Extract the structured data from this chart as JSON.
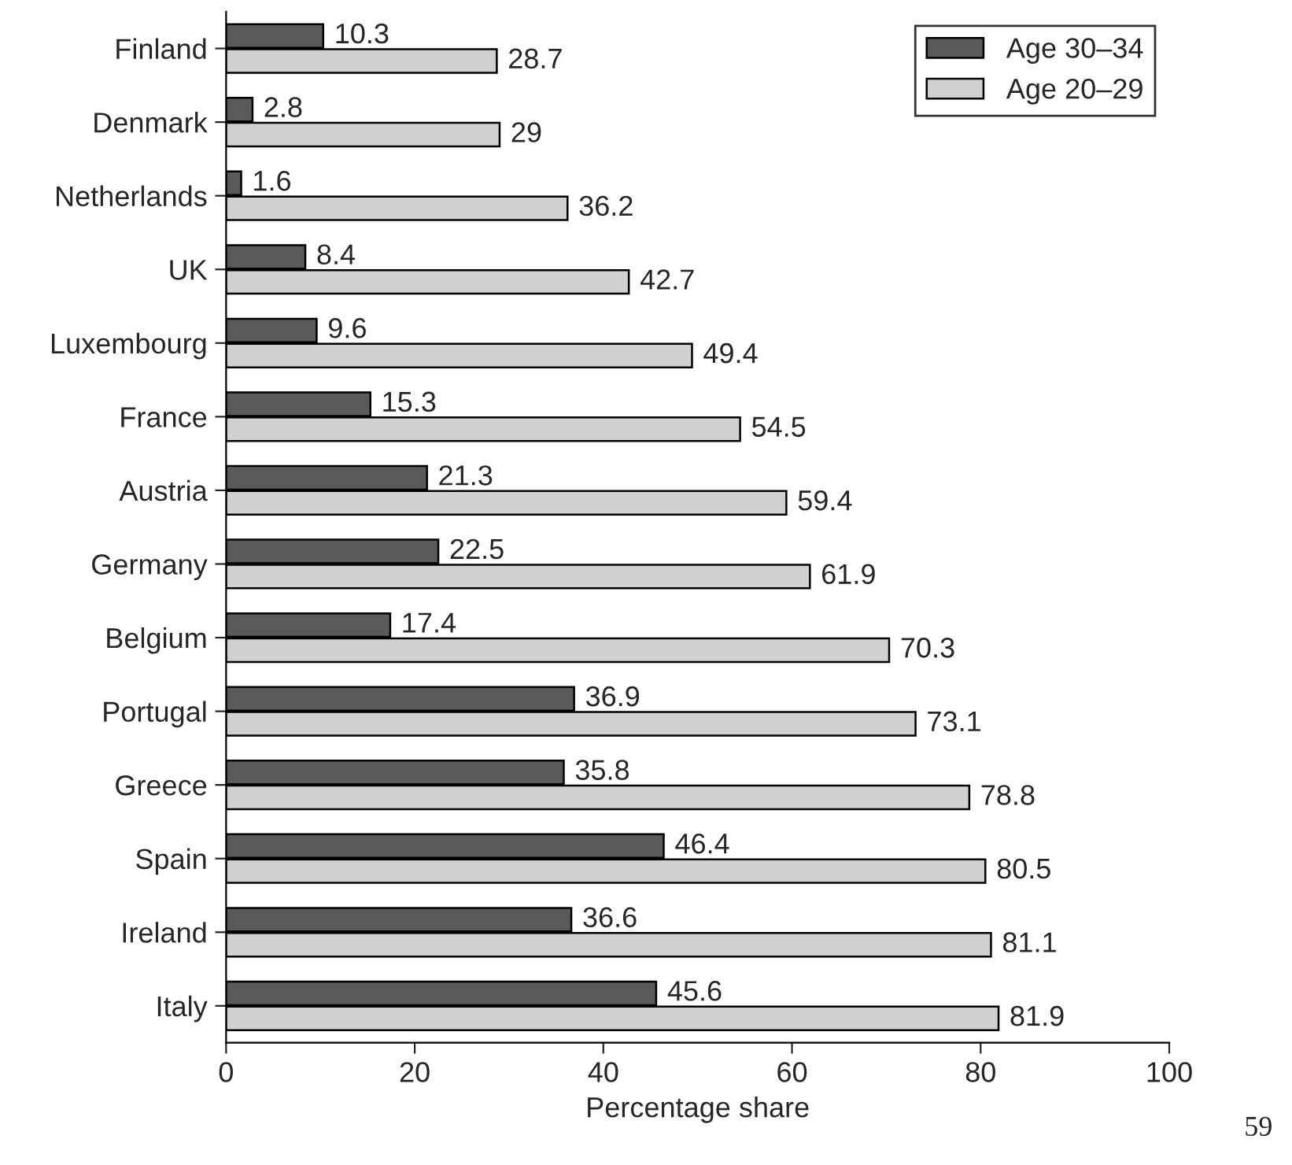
{
  "chart_data": {
    "type": "bar",
    "orientation": "horizontal",
    "xlabel": "Percentage share",
    "categories": [
      "Finland",
      "Denmark",
      "Netherlands",
      "UK",
      "Luxembourg",
      "France",
      "Austria",
      "Germany",
      "Belgium",
      "Portugal",
      "Greece",
      "Spain",
      "Ireland",
      "Italy"
    ],
    "series": [
      {
        "name": "Age 30–34",
        "color": "#5a5a5a",
        "values": [
          10.3,
          2.8,
          1.6,
          8.4,
          9.6,
          15.3,
          21.3,
          22.5,
          17.4,
          36.9,
          35.8,
          46.4,
          36.6,
          45.6
        ]
      },
      {
        "name": "Age 20–29",
        "color": "#d0d0d0",
        "values": [
          28.7,
          29,
          36.2,
          42.7,
          49.4,
          54.5,
          59.4,
          61.9,
          70.3,
          73.1,
          78.8,
          80.5,
          81.1,
          81.9
        ]
      }
    ],
    "xlim": [
      0,
      100
    ],
    "xticks": [
      0,
      20,
      40,
      60,
      80,
      100
    ],
    "data_labels": true,
    "legend": "top right",
    "grid": false,
    "annotations": [
      "59"
    ]
  }
}
